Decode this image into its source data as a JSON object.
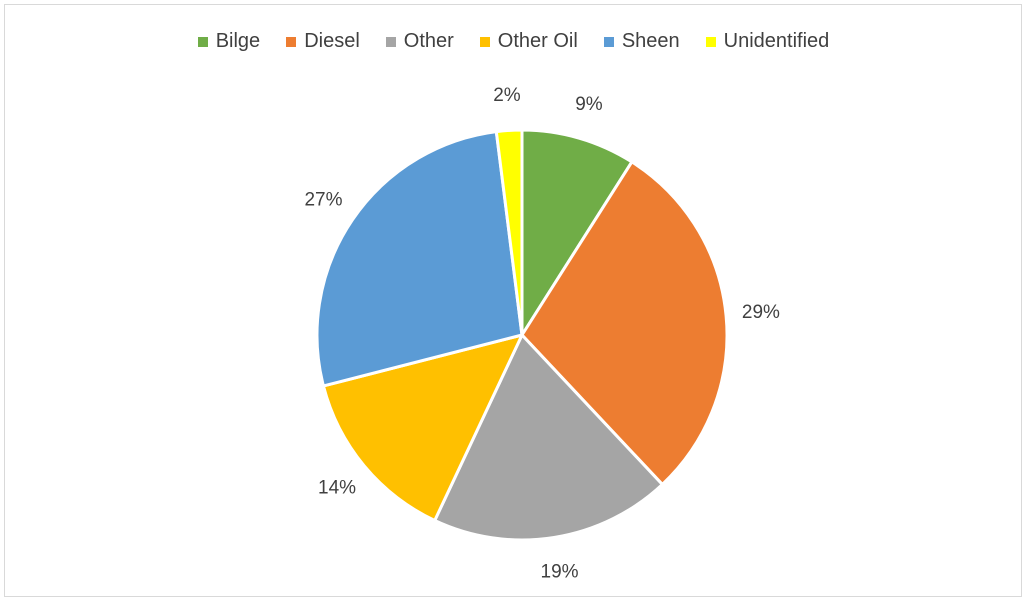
{
  "chart_data": {
    "type": "pie",
    "title": "",
    "legend_position": "top",
    "categories": [
      "Bilge",
      "Diesel",
      "Other",
      "Other Oil",
      "Sheen",
      "Unidentified"
    ],
    "values": [
      9,
      29,
      19,
      14,
      27,
      2
    ],
    "labels": [
      "9%",
      "29%",
      "19%",
      "14%",
      "27%",
      "2%"
    ],
    "colors": [
      "#70ad47",
      "#ed7d31",
      "#a5a5a5",
      "#ffc000",
      "#5b9bd5",
      "#ffff00"
    ],
    "start_angle_deg": 0,
    "direction": "clockwise"
  }
}
